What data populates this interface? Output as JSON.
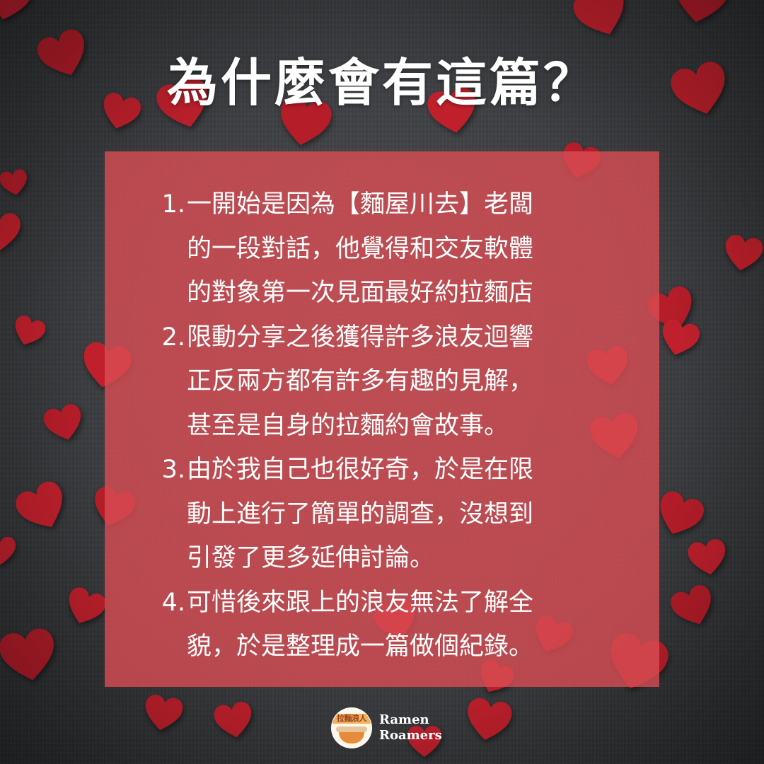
{
  "title": "為什麼會有這篇？",
  "items": [
    {
      "num": "1.",
      "text": "一開始是因為【麵屋川去】老闆\n的一段對話，他覺得和交友軟體\n的對象第一次見面最好約拉麵店"
    },
    {
      "num": "2.",
      "text": "限動分享之後獲得許多浪友迴響\n正反兩方都有許多有趣的見解，\n甚至是自身的拉麵約會故事。"
    },
    {
      "num": "3.",
      "text": "由於我自己也很好奇，於是在限\n動上進行了簡單的調查，沒想到\n引發了更多延伸討論。"
    },
    {
      "num": "4.",
      "text": "可惜後來跟上的浪友無法了解全\n貌，於是整理成一篇做個紀錄。"
    }
  ],
  "logo": {
    "badge_text": "拉麵浪人",
    "line1": "Ramen",
    "line2": "Roamers"
  },
  "colors": {
    "panel": "#da4e54",
    "heart": "#c0202c",
    "background": "#3a3c3f"
  }
}
